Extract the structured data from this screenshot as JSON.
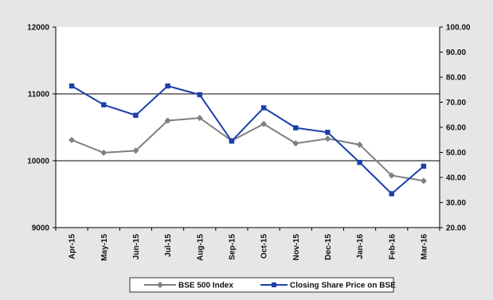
{
  "chart_data": {
    "type": "line",
    "categories": [
      "Apr-15",
      "May-15",
      "Jun-15",
      "Jul-15",
      "Aug-15",
      "Sep-15",
      "Oct-15",
      "Nov-15",
      "Dec-15",
      "Jan-16",
      "Feb-16",
      "Mar-16"
    ],
    "series": [
      {
        "name": "BSE 500 Index",
        "axis": "left",
        "color": "#808080",
        "marker": "diamond",
        "values": [
          10310,
          10120,
          10150,
          10600,
          10640,
          10300,
          10550,
          10260,
          10330,
          10240,
          9780,
          9700
        ]
      },
      {
        "name": "Closing Share Price on BSE",
        "axis": "right",
        "color": "#1c3faa",
        "marker": "square",
        "values": [
          76.5,
          69.0,
          64.8,
          76.5,
          73.0,
          54.5,
          67.8,
          59.8,
          58.0,
          46.0,
          33.5,
          44.5
        ]
      }
    ],
    "y_left": {
      "min": 9000,
      "max": 12000,
      "ticks": [
        "9000",
        "10000",
        "11000",
        "12000"
      ]
    },
    "y_right": {
      "min": 20,
      "max": 100,
      "ticks": [
        "20.00",
        "30.00",
        "40.00",
        "50.00",
        "60.00",
        "70.00",
        "80.00",
        "90.00",
        "100.00"
      ]
    },
    "gridlines": [
      10000,
      11000
    ],
    "legend_position": "bottom"
  }
}
